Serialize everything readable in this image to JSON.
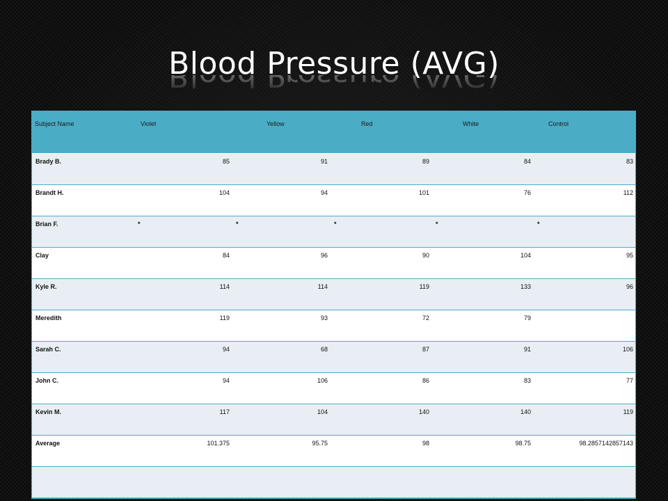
{
  "title": "Blood Pressure (AVG)",
  "colors": {
    "header": "#4bacc6",
    "band": "#e8eef3",
    "title": "#ffffff"
  },
  "table": {
    "headers": [
      "Subject Name",
      "Violet",
      "Yellow",
      "Red",
      "White",
      "Control"
    ],
    "rows": [
      {
        "name": "Brady B.",
        "values": [
          "85",
          "91",
          "89",
          "84",
          "83"
        ]
      },
      {
        "name": "Brandt H.",
        "values": [
          "104",
          "94",
          "101",
          "76",
          "112"
        ]
      },
      {
        "name": "Brian F.",
        "values": [
          "*",
          "*",
          "*",
          "*",
          "*"
        ]
      },
      {
        "name": "Clay",
        "values": [
          "84",
          "96",
          "90",
          "104",
          "95"
        ]
      },
      {
        "name": "Kyle R.",
        "values": [
          "114",
          "114",
          "119",
          "133",
          "96"
        ]
      },
      {
        "name": "Meredith",
        "values": [
          "119",
          "93",
          "72",
          "79",
          ""
        ]
      },
      {
        "name": "Sarah C.",
        "values": [
          "94",
          "68",
          "87",
          "91",
          "106"
        ]
      },
      {
        "name": "John C.",
        "values": [
          "94",
          "106",
          "86",
          "83",
          "77"
        ]
      },
      {
        "name": "Kevin M.",
        "values": [
          "117",
          "104",
          "140",
          "140",
          "119"
        ]
      },
      {
        "name": "Average",
        "values": [
          "101.375",
          "95.75",
          "98",
          "98.75",
          "98.2857142857143"
        ]
      }
    ]
  }
}
